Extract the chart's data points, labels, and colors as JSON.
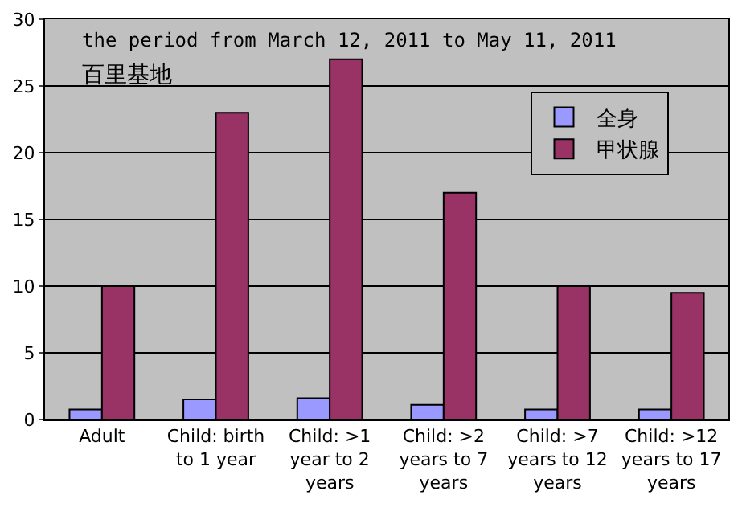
{
  "chart_data": {
    "type": "bar",
    "annotations": [
      "the period from March 12, 2011 to May 11, 2011",
      "百里基地"
    ],
    "categories": [
      "Adult",
      "Child: birth to 1 year",
      "Child: >1 year to 2 years",
      "Child: >2 years to 7 years",
      "Child: >7 years to 12 years",
      "Child: >12 years to 17 years"
    ],
    "series": [
      {
        "name": "全身",
        "color": "#9999ff",
        "values": [
          0.75,
          1.5,
          1.6,
          1.1,
          0.75,
          0.75
        ]
      },
      {
        "name": "甲状腺",
        "color": "#993366",
        "values": [
          10,
          23,
          27,
          17,
          10,
          9.5
        ]
      }
    ],
    "ylim": [
      0,
      30
    ],
    "yticks": [
      0,
      5,
      10,
      15,
      20,
      25,
      30
    ],
    "grid": "y",
    "legend": "top right"
  }
}
